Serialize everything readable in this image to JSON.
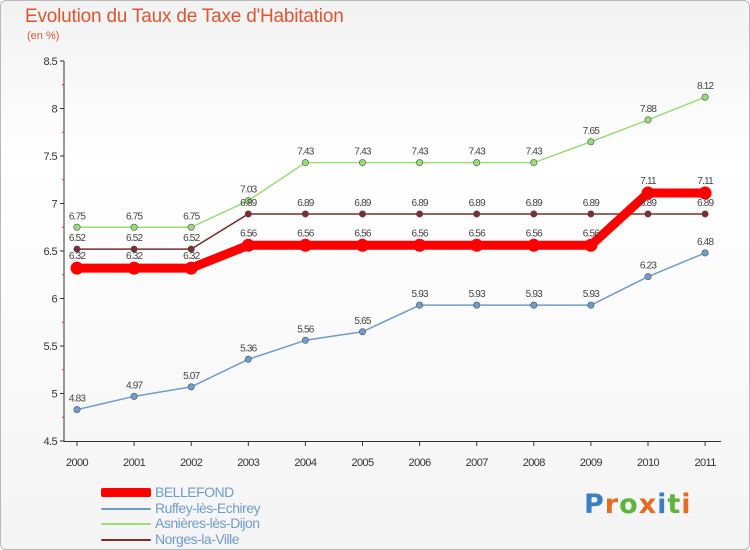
{
  "title": "Evolution du Taux de Taxe d'Habitation",
  "subtitle": "(en %)",
  "logo": {
    "text": "Proxiti",
    "colors": [
      "#3a7fc5",
      "#e66a20",
      "#5db53a",
      "#e66a20",
      "#3a7fc5",
      "#5db53a",
      "#e66a20"
    ]
  },
  "chart_data": {
    "type": "line",
    "x": [
      "2000",
      "2001",
      "2002",
      "2003",
      "2004",
      "2005",
      "2006",
      "2007",
      "2008",
      "2009",
      "2010",
      "2011"
    ],
    "ylim": [
      4.5,
      8.5
    ],
    "yticks": [
      "4.5",
      "5",
      "5.5",
      "6",
      "6.5",
      "7",
      "7.5",
      "8",
      "8.5"
    ],
    "grid": false,
    "legend_position": "bottom-left",
    "series": [
      {
        "name": "BELLEFOND",
        "color": "#ff0000",
        "values": [
          6.32,
          6.32,
          6.32,
          6.56,
          6.56,
          6.56,
          6.56,
          6.56,
          6.56,
          6.56,
          7.11,
          7.11
        ],
        "labels": [
          "6.32",
          "6.32",
          "6.32",
          "6.56",
          "6.56",
          "6.56",
          "6.56",
          "6.56",
          "6.56",
          "6.56",
          "7.11",
          "7.11"
        ]
      },
      {
        "name": "Ruffey-lès-Echirey",
        "color": "#6e9cce",
        "values": [
          4.83,
          4.97,
          5.07,
          5.36,
          5.56,
          5.65,
          5.93,
          5.93,
          5.93,
          5.93,
          6.23,
          6.48
        ],
        "labels": [
          "4.83",
          "4.97",
          "5.07",
          "5.36",
          "5.56",
          "5.65",
          "5.93",
          "5.93",
          "5.93",
          "5.93",
          "6.23",
          "6.48"
        ]
      },
      {
        "name": "Asnières-lès-Dijon",
        "color": "#99dd77",
        "values": [
          6.75,
          6.75,
          6.75,
          7.03,
          7.43,
          7.43,
          7.43,
          7.43,
          7.43,
          7.65,
          7.88,
          8.12
        ],
        "labels": [
          "6.75",
          "6.75",
          "6.75",
          "7.03",
          "7.43",
          "7.43",
          "7.43",
          "7.43",
          "7.43",
          "7.65",
          "7.88",
          "8.12"
        ]
      },
      {
        "name": "Norges-la-Ville",
        "color": "#7a2e2e",
        "values": [
          6.52,
          6.52,
          6.52,
          6.89,
          6.89,
          6.89,
          6.89,
          6.89,
          6.89,
          6.89,
          6.89,
          6.89
        ],
        "labels": [
          "6.52",
          "6.52",
          "6.52",
          "6.89",
          "6.89",
          "6.89",
          "6.89",
          "6.89",
          "6.89",
          "6.89",
          "6.89",
          "6.89"
        ]
      }
    ]
  }
}
